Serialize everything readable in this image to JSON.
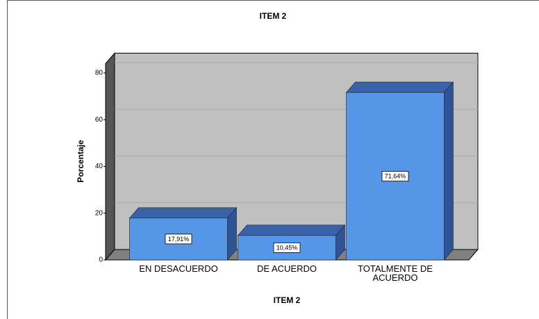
{
  "chart_data": {
    "type": "bar3d",
    "title": "ITEM 2",
    "xlabel": "ITEM 2",
    "ylabel": "Porcentaje",
    "categories": [
      "EN DESACUERDO",
      "DE ACUERDO",
      "TOTALMENTE DE ACUERDO"
    ],
    "values": [
      17.91,
      10.45,
      71.64
    ],
    "value_labels": [
      "17,91%",
      "10,45%",
      "71,64%"
    ],
    "color": "#5596e6",
    "ylim": [
      0,
      84
    ],
    "yticks": [
      0,
      20,
      40,
      60,
      80
    ],
    "grid": true
  }
}
